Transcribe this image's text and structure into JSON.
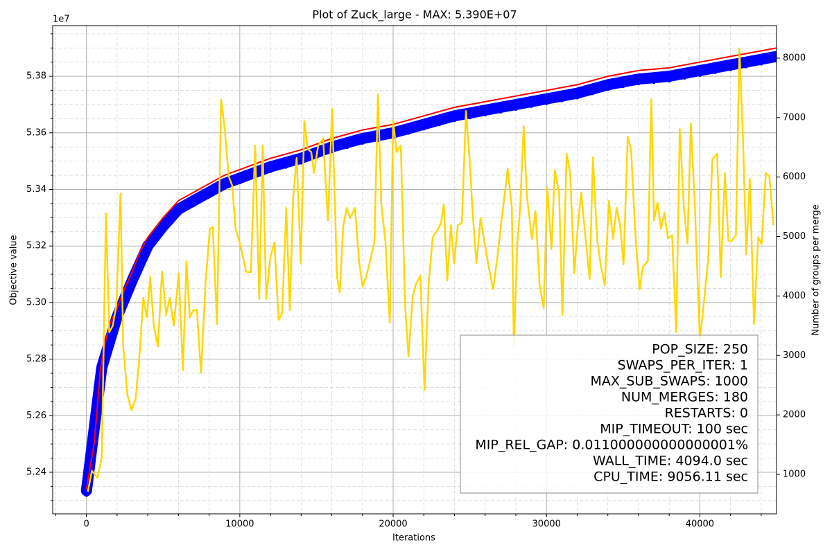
{
  "chart_data": {
    "type": "line",
    "title": "Plot of Zuck_large - MAX: 5.390E+07",
    "x_label": "Iterations",
    "y_label": "Objective value",
    "y2_label": "Number of groups per merge",
    "y_offset_label": "1e7",
    "xlim": [
      -2200,
      45000
    ],
    "ylim": [
      5.2253,
      5.3979
    ],
    "y2lim": [
      336,
      8547
    ],
    "xticks": [
      0,
      10000,
      20000,
      30000,
      40000
    ],
    "yticks": [
      5.24,
      5.26,
      5.28,
      {
        "value": 5.3,
        "label": "5.30"
      },
      5.32,
      5.34,
      5.36,
      5.38
    ],
    "y2ticks": [
      1000,
      2000,
      3000,
      4000,
      5000,
      6000,
      7000,
      8000
    ],
    "xminorticks": [
      -2000,
      2000,
      4000,
      6000,
      8000,
      12000,
      14000,
      16000,
      18000,
      22000,
      24000,
      26000,
      28000,
      32000,
      34000,
      36000,
      38000,
      42000,
      44000
    ],
    "yminorticks": [
      5.23,
      5.235,
      5.245,
      5.25,
      5.255,
      5.265,
      5.27,
      5.275,
      5.285,
      5.29,
      5.295,
      5.305,
      5.31,
      5.315,
      5.325,
      5.33,
      5.335,
      5.345,
      5.35,
      5.355,
      5.365,
      5.37,
      5.375,
      5.385,
      5.39,
      5.395
    ],
    "grid": true,
    "series": [
      {
        "type": "scatter",
        "color": "#0000ff",
        "x": [
          0,
          1000,
          2000,
          3000,
          4000,
          5000,
          6000,
          7000,
          8000,
          9000,
          10000,
          11000,
          12000,
          13000,
          14000,
          15000,
          16000,
          17000,
          18000,
          19000,
          20000,
          21000,
          22000,
          23000,
          24000,
          25000,
          26000,
          27000,
          28000,
          29000,
          30000,
          31000,
          32000,
          33000,
          34000,
          35000,
          36000,
          37000,
          38000,
          39000,
          40000,
          41000,
          42000,
          43000,
          44000,
          45000
        ],
        "values": [
          5.2335,
          5.277,
          5.295,
          5.308,
          5.32,
          5.327,
          5.333,
          5.336,
          5.339,
          5.342,
          5.344,
          5.346,
          5.348,
          5.3495,
          5.351,
          5.353,
          5.355,
          5.3565,
          5.358,
          5.359,
          5.36,
          5.3615,
          5.363,
          5.3645,
          5.366,
          5.367,
          5.368,
          5.369,
          5.37,
          5.371,
          5.372,
          5.373,
          5.374,
          5.3755,
          5.377,
          5.378,
          5.379,
          5.3795,
          5.38,
          5.381,
          5.382,
          5.383,
          5.384,
          5.385,
          5.386,
          5.387
        ]
      },
      {
        "type": "line",
        "color": "#ff0000",
        "x": [
          0,
          500,
          700,
          900,
          1200,
          1500,
          2000,
          2500,
          3000,
          3500,
          4000,
          5000,
          6000,
          7000,
          8000,
          9000,
          10000,
          12000,
          14000,
          16000,
          18000,
          20000,
          22000,
          24000,
          26000,
          28000,
          30000,
          32000,
          34000,
          36000,
          38000,
          40000,
          42000,
          44000,
          45000
        ],
        "values": [
          5.234,
          5.25,
          5.262,
          5.276,
          5.285,
          5.292,
          5.298,
          5.305,
          5.311,
          5.318,
          5.323,
          5.33,
          5.336,
          5.339,
          5.342,
          5.345,
          5.347,
          5.351,
          5.354,
          5.358,
          5.361,
          5.363,
          5.366,
          5.369,
          5.371,
          5.373,
          5.375,
          5.377,
          5.38,
          5.382,
          5.383,
          5.385,
          5.387,
          5.389,
          5.39
        ]
      },
      {
        "type": "line",
        "color": "#ffd700",
        "axis": "y2",
        "x": [
          90,
          360,
          720,
          1000,
          1270,
          1490,
          1720,
          1950,
          2220,
          2400,
          2670,
          2940,
          3210,
          3440,
          3710,
          3940,
          4160,
          4390,
          4660,
          4930,
          5200,
          5430,
          5700,
          6020,
          6290,
          6520,
          6740,
          6970,
          7200,
          7470,
          7780,
          8050,
          8240,
          8510,
          8780,
          9000,
          9280,
          9500,
          9730,
          10050,
          10410,
          10720,
          11000,
          11270,
          11490,
          11720,
          11990,
          12260,
          12530,
          12760,
          13030,
          13260,
          13480,
          13710,
          13980,
          14210,
          14430,
          14660,
          14840,
          15110,
          15430,
          15750,
          16020,
          16340,
          16520,
          16740,
          16970,
          17200,
          17510,
          17780,
          18010,
          18240,
          18550,
          18780,
          19010,
          19230,
          19500,
          19780,
          20000,
          20230,
          20500,
          20770,
          21000,
          21270,
          21490,
          21770,
          22040,
          22310,
          22580,
          22850,
          23120,
          23300,
          23530,
          23760,
          23980,
          24210,
          24480,
          24750,
          24980,
          25160,
          25430,
          25700,
          25970,
          26250,
          26520,
          26830,
          27150,
          27470,
          27740,
          27870,
          28100,
          28280,
          28510,
          28730,
          29050,
          29280,
          29550,
          29820,
          30050,
          30320,
          30540,
          30820,
          31040,
          31310,
          31540,
          31810,
          32040,
          32260,
          32530,
          32810,
          33030,
          33300,
          33530,
          33800,
          34070,
          34340,
          34570,
          34800,
          35020,
          35300,
          35520,
          35790,
          36070,
          36290,
          36610,
          36830,
          37010,
          37240,
          37470,
          37690,
          37920,
          38190,
          38460,
          38690,
          38960,
          39190,
          39410,
          39680,
          40000,
          40270,
          40540,
          40820,
          41130,
          41360,
          41630,
          41860,
          42080,
          42350,
          42580,
          42810,
          43030,
          43260,
          43530,
          43800,
          44030,
          44300,
          44530,
          44800
        ],
        "values": [
          710,
          1060,
          940,
          1290,
          5390,
          3390,
          3500,
          3850,
          5720,
          3150,
          2340,
          2080,
          2280,
          2920,
          3970,
          3640,
          4320,
          3500,
          3150,
          4410,
          3680,
          3970,
          3500,
          4380,
          2750,
          4580,
          3640,
          3760,
          3770,
          2710,
          4260,
          5130,
          5160,
          3530,
          7300,
          6860,
          6010,
          5860,
          5130,
          4840,
          4410,
          4400,
          6530,
          3950,
          6530,
          3950,
          4650,
          4900,
          3600,
          3700,
          5480,
          3760,
          5660,
          6320,
          4550,
          6940,
          6470,
          6420,
          6070,
          6530,
          6650,
          5270,
          7150,
          4320,
          4060,
          5170,
          5480,
          5310,
          5480,
          4580,
          4160,
          4320,
          4650,
          4900,
          7390,
          5540,
          4900,
          3550,
          6950,
          6420,
          6530,
          3880,
          2980,
          3990,
          4200,
          4340,
          2420,
          4180,
          4990,
          5100,
          5220,
          5540,
          4260,
          5190,
          4550,
          5190,
          5230,
          7110,
          6320,
          5480,
          4550,
          5310,
          4880,
          4470,
          4110,
          4730,
          5450,
          6140,
          5480,
          3150,
          4900,
          5480,
          6860,
          5660,
          4960,
          5430,
          4180,
          3800,
          5830,
          4790,
          6120,
          5720,
          3680,
          6390,
          6070,
          4380,
          5160,
          5740,
          5020,
          4280,
          6330,
          4960,
          4530,
          4180,
          5600,
          4960,
          5480,
          5190,
          4530,
          6680,
          6450,
          5040,
          4110,
          4490,
          4590,
          7310,
          5270,
          5570,
          5130,
          5400,
          4970,
          5020,
          3390,
          6810,
          5480,
          4880,
          6900,
          5480,
          3270,
          3910,
          4610,
          6300,
          6390,
          4320,
          6070,
          4930,
          4930,
          5020,
          8160,
          6650,
          4700,
          5970,
          3530,
          4990,
          4880,
          6070,
          6010,
          5190
        ]
      }
    ],
    "annotation": [
      "POP_SIZE: 250",
      "SWAPS_PER_ITER: 1",
      "MAX_SUB_SWAPS: 1000",
      "NUM_MERGES: 180",
      "RESTARTS: 0",
      "MIP_TIMEOUT: 100 sec",
      "MIP_REL_GAP: 0.011000000000000001%",
      "WALL_TIME: 4094.0 sec",
      "CPU_TIME: 9056.11 sec"
    ]
  }
}
